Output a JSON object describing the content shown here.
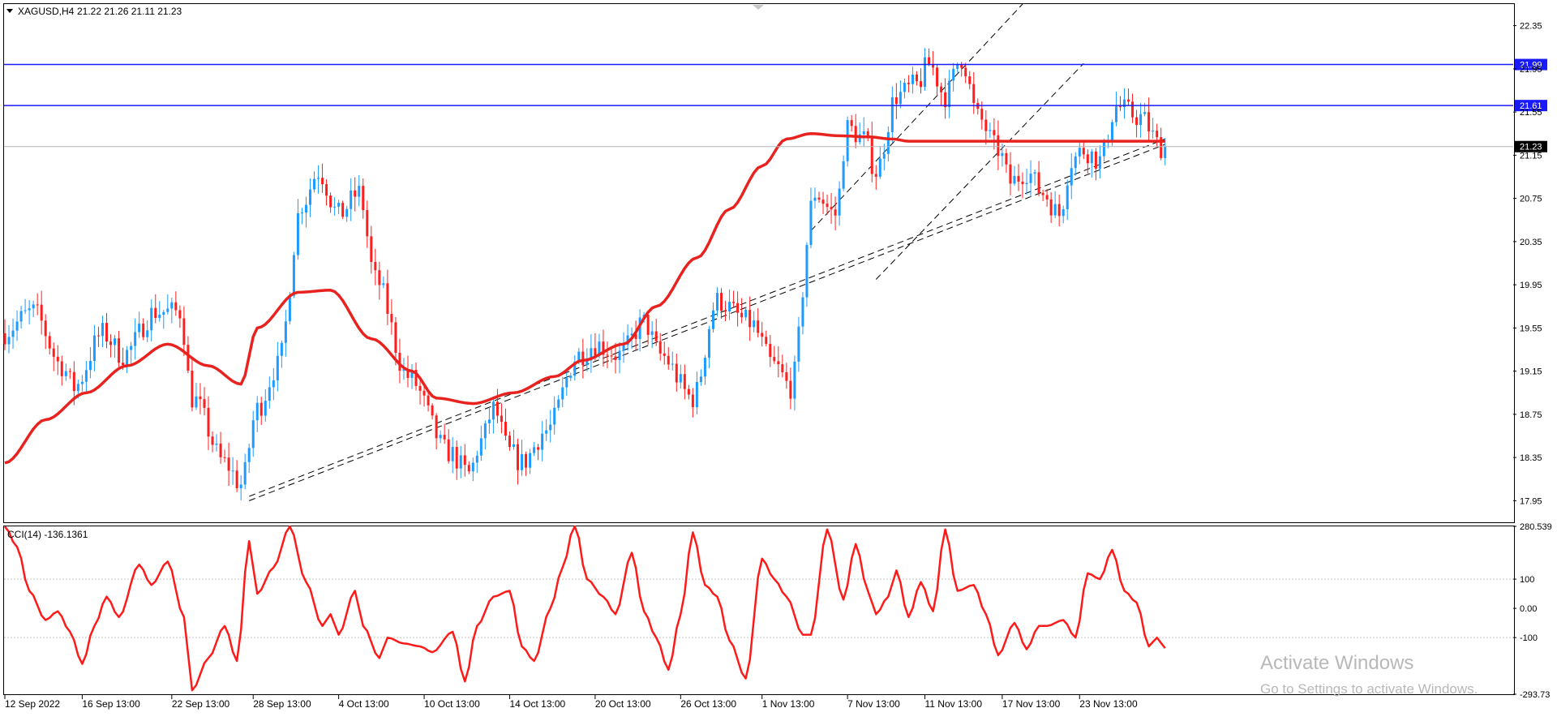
{
  "symbol_header": {
    "symbol": "XAGUSD,H4",
    "ohlc": "21.22 21.26 21.11 21.23"
  },
  "indicator_header": {
    "label": "CCI(14) -136.1361"
  },
  "watermark": {
    "title": "Activate Windows",
    "subtitle": "Go to Settings to activate Windows."
  },
  "colors": {
    "bull": "#1e9bff",
    "bear": "#ff1e1e",
    "ma": "#e8231f",
    "cci": "#ff1a1a",
    "hline": "#1a1aff",
    "grid": "#000000"
  },
  "chart_data": [
    {
      "type": "candlestick",
      "title": "XAGUSD,H4",
      "ylim": [
        17.75,
        22.55
      ],
      "y_ticks": [
        "22.35",
        "21.95",
        "21.55",
        "21.15",
        "20.75",
        "20.35",
        "19.95",
        "19.55",
        "19.15",
        "18.75",
        "18.35",
        "17.95"
      ],
      "x_tick_labels": [
        "12 Sep 2022",
        "16 Sep 13:00",
        "22 Sep 13:00",
        "28 Sep 13:00",
        "4 Oct 13:00",
        "10 Oct 13:00",
        "14 Oct 13:00",
        "20 Oct 13:00",
        "26 Oct 13:00",
        "1 Nov 13:00",
        "7 Nov 13:00",
        "11 Nov 13:00",
        "17 Nov 13:00",
        "23 Nov 13:00"
      ],
      "moving_average_anchors": [
        [
          0,
          18.3
        ],
        [
          10,
          18.7
        ],
        [
          20,
          18.95
        ],
        [
          30,
          19.2
        ],
        [
          40,
          19.4
        ],
        [
          50,
          19.2
        ],
        [
          58,
          19.03
        ],
        [
          62,
          19.55
        ],
        [
          72,
          19.88
        ],
        [
          80,
          19.9
        ],
        [
          90,
          19.45
        ],
        [
          100,
          19.15
        ],
        [
          106,
          18.9
        ],
        [
          115,
          18.85
        ],
        [
          125,
          18.95
        ],
        [
          135,
          19.1
        ],
        [
          142,
          19.25
        ],
        [
          152,
          19.4
        ],
        [
          160,
          19.75
        ],
        [
          170,
          20.2
        ],
        [
          178,
          20.65
        ],
        [
          186,
          21.05
        ],
        [
          192,
          21.3
        ],
        [
          198,
          21.35
        ],
        [
          205,
          21.33
        ],
        [
          212,
          21.32
        ],
        [
          218,
          21.3
        ],
        [
          222,
          21.28
        ]
      ],
      "price_path_anchors": [
        [
          0,
          19.5
        ],
        [
          8,
          19.7
        ],
        [
          15,
          19.2
        ],
        [
          18,
          19.0
        ],
        [
          25,
          19.5
        ],
        [
          30,
          19.3
        ],
        [
          38,
          19.7
        ],
        [
          44,
          19.7
        ],
        [
          47,
          18.9
        ],
        [
          55,
          18.3
        ],
        [
          59,
          18.1
        ],
        [
          63,
          18.8
        ],
        [
          68,
          19.2
        ],
        [
          74,
          20.7
        ],
        [
          78,
          21.0
        ],
        [
          83,
          20.6
        ],
        [
          88,
          20.8
        ],
        [
          92,
          20.0
        ],
        [
          100,
          19.1
        ],
        [
          110,
          18.4
        ],
        [
          115,
          18.2
        ],
        [
          118,
          18.5
        ],
        [
          121,
          18.8
        ],
        [
          125,
          18.4
        ],
        [
          128,
          18.3
        ],
        [
          134,
          18.6
        ],
        [
          142,
          19.3
        ],
        [
          146,
          19.4
        ],
        [
          152,
          19.3
        ],
        [
          158,
          19.6
        ],
        [
          162,
          19.3
        ],
        [
          170,
          18.9
        ],
        [
          176,
          19.8
        ],
        [
          184,
          19.6
        ],
        [
          190,
          19.2
        ],
        [
          194,
          19.0
        ],
        [
          200,
          20.8
        ],
        [
          205,
          20.6
        ],
        [
          208,
          21.4
        ],
        [
          212,
          21.3
        ],
        [
          215,
          21.0
        ],
        [
          220,
          21.7
        ],
        [
          225,
          21.8
        ],
        [
          228,
          22.0
        ],
        [
          232,
          21.7
        ],
        [
          236,
          22.05
        ],
        [
          240,
          21.5
        ],
        [
          245,
          21.2
        ],
        [
          248,
          20.9
        ],
        [
          252,
          21.0
        ],
        [
          256,
          20.8
        ],
        [
          260,
          20.6
        ],
        [
          263,
          21.1
        ],
        [
          266,
          21.2
        ],
        [
          270,
          21.1
        ],
        [
          274,
          21.6
        ],
        [
          280,
          21.5
        ],
        [
          285,
          21.23
        ]
      ],
      "horizontal_levels": [
        {
          "label": "21.99",
          "price": 21.99
        },
        {
          "label": "21.61",
          "price": 21.61
        }
      ],
      "current_price": {
        "label": "21.23",
        "price": 21.23
      },
      "trendlines": [
        {
          "style": "dashed",
          "from": {
            "bar": 60,
            "price": 17.95
          },
          "to": {
            "bar": 285,
            "price": 21.25
          }
        },
        {
          "style": "dashed",
          "from": {
            "bar": 60,
            "price": 17.99
          },
          "to": {
            "bar": 285,
            "price": 21.3
          }
        },
        {
          "style": "dashed",
          "from": {
            "bar": 198,
            "price": 20.45
          },
          "to": {
            "bar": 250,
            "price": 22.55
          }
        },
        {
          "style": "dashed",
          "from": {
            "bar": 214,
            "price": 20.0
          },
          "to": {
            "bar": 265,
            "price": 22.0
          }
        }
      ]
    },
    {
      "type": "line",
      "title": "CCI(14) -136.1361",
      "ylim": [
        -293.73,
        280.539
      ],
      "y_ticks": [
        "280.539",
        "100",
        "0.00",
        "-100",
        "-293.73"
      ],
      "levels": [
        100,
        -100
      ],
      "value_anchors": [
        [
          0,
          280
        ],
        [
          3,
          210
        ],
        [
          6,
          60
        ],
        [
          10,
          -40
        ],
        [
          13,
          -10
        ],
        [
          16,
          -80
        ],
        [
          19,
          -190
        ],
        [
          22,
          -60
        ],
        [
          25,
          40
        ],
        [
          28,
          -30
        ],
        [
          33,
          150
        ],
        [
          36,
          80
        ],
        [
          40,
          160
        ],
        [
          44,
          -30
        ],
        [
          46,
          -280
        ],
        [
          50,
          -170
        ],
        [
          54,
          -60
        ],
        [
          57,
          -180
        ],
        [
          60,
          230
        ],
        [
          62,
          50
        ],
        [
          66,
          140
        ],
        [
          70,
          280
        ],
        [
          74,
          90
        ],
        [
          78,
          -60
        ],
        [
          80,
          -20
        ],
        [
          82,
          -90
        ],
        [
          86,
          60
        ],
        [
          88,
          -60
        ],
        [
          92,
          -170
        ],
        [
          94,
          -100
        ],
        [
          98,
          -120
        ],
        [
          102,
          -130
        ],
        [
          105,
          -150
        ],
        [
          110,
          -80
        ],
        [
          113,
          -250
        ],
        [
          116,
          -60
        ],
        [
          120,
          40
        ],
        [
          124,
          60
        ],
        [
          127,
          -130
        ],
        [
          130,
          -180
        ],
        [
          134,
          0
        ],
        [
          137,
          140
        ],
        [
          140,
          290
        ],
        [
          143,
          100
        ],
        [
          147,
          40
        ],
        [
          150,
          -20
        ],
        [
          154,
          190
        ],
        [
          157,
          -10
        ],
        [
          160,
          -100
        ],
        [
          163,
          -210
        ],
        [
          166,
          -20
        ],
        [
          169,
          260
        ],
        [
          172,
          80
        ],
        [
          175,
          40
        ],
        [
          178,
          -110
        ],
        [
          182,
          -240
        ],
        [
          186,
          170
        ],
        [
          189,
          100
        ],
        [
          192,
          40
        ],
        [
          196,
          -90
        ],
        [
          198,
          -90
        ],
        [
          202,
          270
        ],
        [
          206,
          30
        ],
        [
          209,
          220
        ],
        [
          212,
          60
        ],
        [
          214,
          -20
        ],
        [
          217,
          40
        ],
        [
          219,
          130
        ],
        [
          222,
          -30
        ],
        [
          225,
          90
        ],
        [
          228,
          -10
        ],
        [
          231,
          270
        ],
        [
          234,
          60
        ],
        [
          238,
          80
        ],
        [
          241,
          -20
        ],
        [
          244,
          -160
        ],
        [
          248,
          -50
        ],
        [
          251,
          -140
        ],
        [
          254,
          -60
        ],
        [
          256,
          -60
        ],
        [
          260,
          -40
        ],
        [
          263,
          -100
        ],
        [
          266,
          120
        ],
        [
          269,
          100
        ],
        [
          272,
          200
        ],
        [
          275,
          60
        ],
        [
          278,
          20
        ],
        [
          281,
          -130
        ],
        [
          283,
          -100
        ],
        [
          285,
          -136
        ]
      ]
    }
  ]
}
